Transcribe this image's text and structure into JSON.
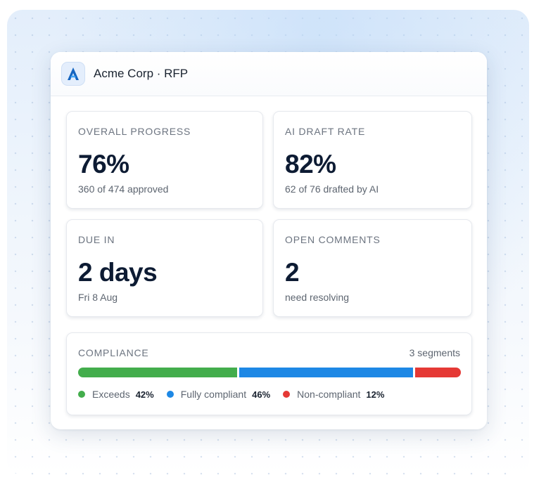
{
  "header": {
    "title": "Acme Corp · RFP",
    "logo_icon": "acme-a-logo"
  },
  "stats": {
    "overall_progress": {
      "label": "OVERALL PROGRESS",
      "value": "76%",
      "sub": "360 of 474 approved"
    },
    "ai_draft_rate": {
      "label": "AI DRAFT RATE",
      "value": "82%",
      "sub": "62 of 76 drafted by AI"
    },
    "due_in": {
      "label": "DUE IN",
      "value": "2 days",
      "sub": "Fri 8 Aug"
    },
    "open_comments": {
      "label": "OPEN COMMENTS",
      "value": "2",
      "sub": "need resolving"
    }
  },
  "compliance": {
    "label": "COMPLIANCE",
    "segments_label": "3 segments",
    "segments": [
      {
        "name": "Exceeds",
        "percent_label": "42%",
        "percent": 42,
        "color": "#43ad4c"
      },
      {
        "name": "Fully compliant",
        "percent_label": "46%",
        "percent": 46,
        "color": "#1e88e5"
      },
      {
        "name": "Non-compliant",
        "percent_label": "12%",
        "percent": 12,
        "color": "#e53935"
      }
    ]
  }
}
